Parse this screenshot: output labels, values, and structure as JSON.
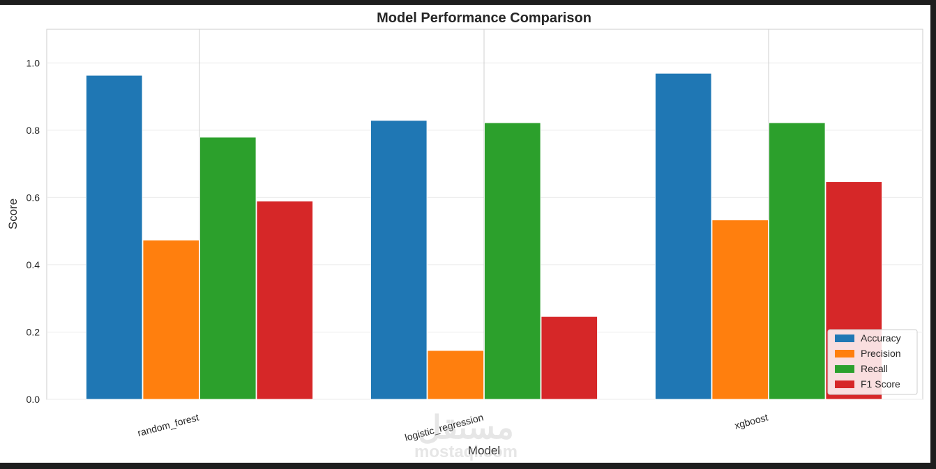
{
  "watermark": {
    "arabic": "مستقل",
    "latin": "mostaql.com"
  },
  "chart_data": {
    "type": "bar",
    "title": "Model Performance Comparison",
    "xlabel": "Model",
    "ylabel": "Score",
    "categories": [
      "random_forest",
      "logistic_regression",
      "xgboost"
    ],
    "series": [
      {
        "name": "Accuracy",
        "color": "#1f77b4",
        "values": [
          0.963,
          0.829,
          0.969
        ]
      },
      {
        "name": "Precision",
        "color": "#ff7f0e",
        "values": [
          0.473,
          0.145,
          0.533
        ]
      },
      {
        "name": "Recall",
        "color": "#2ca02c",
        "values": [
          0.779,
          0.822,
          0.822
        ]
      },
      {
        "name": "F1 Score",
        "color": "#d62728",
        "values": [
          0.589,
          0.246,
          0.647
        ]
      }
    ],
    "ylim": [
      0,
      1.1
    ],
    "yticks": [
      0.0,
      0.2,
      0.4,
      0.6,
      0.8,
      1.0
    ],
    "ytick_labels": [
      "0.0",
      "0.2",
      "0.4",
      "0.6",
      "0.8",
      "1.0"
    ],
    "grid": true,
    "legend_position": "lower-right",
    "xtick_rotation": "slanted"
  }
}
